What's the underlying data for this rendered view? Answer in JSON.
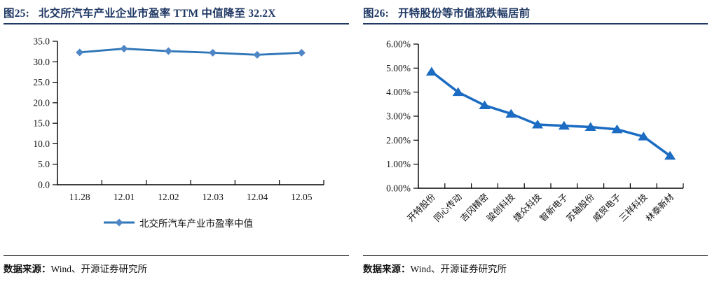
{
  "figures": [
    {
      "label": "图25:",
      "title": "北交所汽车产业企业市盈率 TTM 中值降至 32.2X",
      "legend": "北交所汽车产业市盈率中值",
      "source_label": "数据来源：",
      "source_text": "Wind、开源证券研究所"
    },
    {
      "label": "图26:",
      "title": "开特股份等市值涨跌幅居前",
      "source_label": "数据来源：",
      "source_text": "Wind、开源证券研究所"
    }
  ],
  "colors": {
    "title_navy": "#1F3864",
    "axis": "#000000",
    "chart1_line": "#2E75B6",
    "chart1_marker": "#4E86C6",
    "chart2_line": "#1B6CC2"
  },
  "chart_data": [
    {
      "type": "line",
      "title": "图25: 北交所汽车产业企业市盈率 TTM 中值降至 32.2X",
      "categories": [
        "11.28",
        "12.01",
        "12.02",
        "12.03",
        "12.04",
        "12.05"
      ],
      "series": [
        {
          "name": "北交所汽车产业市盈率中值",
          "values": [
            32.3,
            33.2,
            32.6,
            32.2,
            31.7,
            32.2
          ]
        }
      ],
      "ylim": [
        0,
        35
      ],
      "ytick_interval": 5,
      "ytick_labels": [
        "0.0",
        "5.0",
        "10.0",
        "15.0",
        "20.0",
        "25.0",
        "30.0",
        "35.0"
      ],
      "marker": "diamond",
      "grid": false,
      "legend_position": "bottom"
    },
    {
      "type": "line",
      "title": "图26: 开特股份等市值涨跌幅居前",
      "categories": [
        "开特股份",
        "同心传动",
        "吉冈精密",
        "骏创科技",
        "捷众科技",
        "智新电子",
        "苏轴股份",
        "威贸电子",
        "三祥科技",
        "林泰新材"
      ],
      "series": [
        {
          "values": [
            4.85,
            4.0,
            3.45,
            3.1,
            2.65,
            2.6,
            2.55,
            2.45,
            2.15,
            1.35
          ]
        }
      ],
      "ylim": [
        0,
        6
      ],
      "ytick_interval": 1,
      "ytick_labels": [
        "0.00%",
        "1.00%",
        "2.00%",
        "3.00%",
        "4.00%",
        "5.00%",
        "6.00%"
      ],
      "marker": "triangle",
      "grid": false,
      "legend_position": "none",
      "x_label_rotation": -45
    }
  ]
}
